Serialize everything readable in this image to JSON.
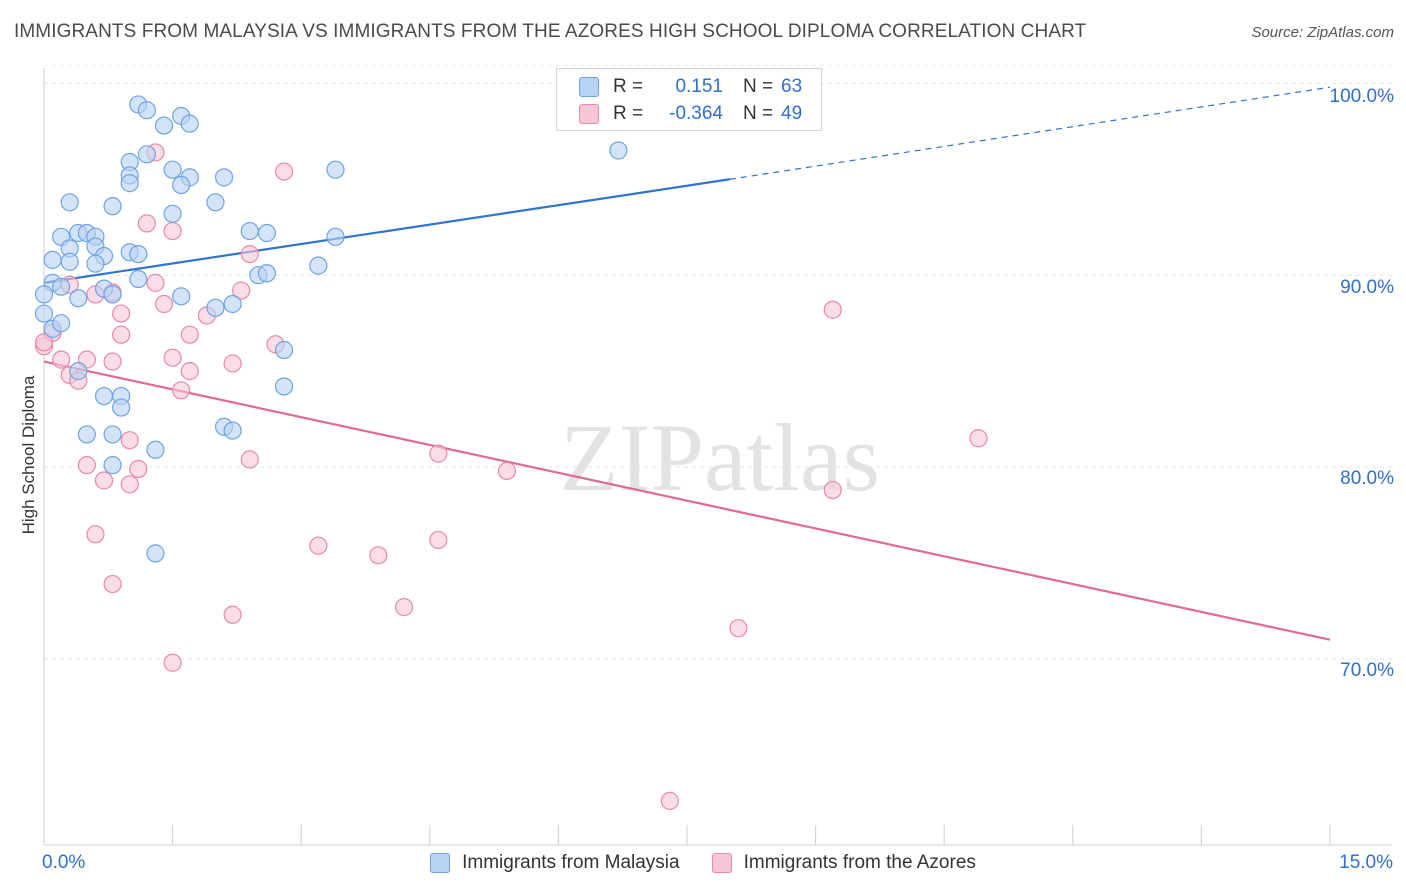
{
  "title": "IMMIGRANTS FROM MALAYSIA VS IMMIGRANTS FROM THE AZORES HIGH SCHOOL DIPLOMA CORRELATION CHART",
  "source": "Source: ZipAtlas.com",
  "watermark": "ZIPatlas",
  "legend": {
    "rows": [
      {
        "r_label": "R =",
        "r_value": "0.151",
        "n_label": "N =",
        "n_value": "63"
      },
      {
        "r_label": "R =",
        "r_value": "-0.364",
        "n_label": "N =",
        "n_value": "49"
      }
    ]
  },
  "chart_data": {
    "type": "scatter",
    "title": "IMMIGRANTS FROM MALAYSIA VS IMMIGRANTS FROM THE AZORES HIGH SCHOOL DIPLOMA CORRELATION CHART",
    "xlabel": "",
    "ylabel": "High School Diploma",
    "xlim": [
      0,
      15
    ],
    "ylim": [
      60.3,
      100.8
    ],
    "x_tick_labels": [
      "0.0%",
      "15.0%"
    ],
    "y_ticks": [
      70,
      80,
      90,
      100
    ],
    "y_tick_labels": [
      "70.0%",
      "80.0%",
      "90.0%",
      "100.0%"
    ],
    "grid": true,
    "legend_position": "bottom-center",
    "series": [
      {
        "name": "Immigrants from Malaysia",
        "color": "#6fa3e3",
        "fill": "#b8d2f4",
        "R": 0.151,
        "N": 63,
        "trend": {
          "x0": 0.0,
          "y0": 89.6,
          "x1": 8.0,
          "y1": 95.0,
          "dash_x1": 15.0,
          "dash_y1": 99.8
        },
        "points": [
          [
            1.1,
            98.9
          ],
          [
            1.2,
            98.6
          ],
          [
            1.6,
            98.3
          ],
          [
            1.4,
            97.8
          ],
          [
            1.7,
            97.9
          ],
          [
            1.2,
            96.3
          ],
          [
            6.7,
            96.5
          ],
          [
            1.0,
            95.9
          ],
          [
            1.5,
            95.5
          ],
          [
            3.4,
            95.5
          ],
          [
            1.0,
            95.2
          ],
          [
            1.7,
            95.1
          ],
          [
            2.1,
            95.1
          ],
          [
            1.0,
            94.8
          ],
          [
            1.6,
            94.7
          ],
          [
            0.3,
            93.8
          ],
          [
            0.8,
            93.6
          ],
          [
            2.0,
            93.8
          ],
          [
            1.5,
            93.2
          ],
          [
            0.4,
            92.2
          ],
          [
            0.5,
            92.2
          ],
          [
            0.2,
            92.0
          ],
          [
            0.6,
            92.0
          ],
          [
            2.4,
            92.3
          ],
          [
            2.6,
            92.2
          ],
          [
            3.4,
            92.0
          ],
          [
            0.3,
            91.4
          ],
          [
            0.6,
            91.5
          ],
          [
            1.0,
            91.2
          ],
          [
            1.1,
            91.1
          ],
          [
            0.7,
            91.0
          ],
          [
            0.1,
            90.8
          ],
          [
            0.3,
            90.7
          ],
          [
            0.6,
            90.6
          ],
          [
            3.2,
            90.5
          ],
          [
            2.5,
            90.0
          ],
          [
            2.6,
            90.1
          ],
          [
            1.1,
            89.8
          ],
          [
            0.1,
            89.6
          ],
          [
            0.2,
            89.4
          ],
          [
            0.7,
            89.3
          ],
          [
            0.8,
            89.0
          ],
          [
            1.6,
            88.9
          ],
          [
            0.0,
            89.0
          ],
          [
            0.4,
            88.8
          ],
          [
            2.2,
            88.5
          ],
          [
            2.0,
            88.3
          ],
          [
            0.0,
            88.0
          ],
          [
            0.1,
            87.2
          ],
          [
            2.8,
            86.1
          ],
          [
            0.4,
            85.0
          ],
          [
            2.8,
            84.2
          ],
          [
            0.7,
            83.7
          ],
          [
            0.9,
            83.7
          ],
          [
            0.9,
            83.1
          ],
          [
            2.1,
            82.1
          ],
          [
            2.2,
            81.9
          ],
          [
            0.5,
            81.7
          ],
          [
            0.8,
            81.7
          ],
          [
            1.3,
            80.9
          ],
          [
            0.8,
            80.1
          ],
          [
            1.3,
            75.5
          ],
          [
            0.2,
            87.5
          ]
        ]
      },
      {
        "name": "Immigrants from the Azores",
        "color": "#e889a7",
        "fill": "#f7c6d6",
        "R": -0.364,
        "N": 49,
        "trend": {
          "x0": 0.0,
          "y0": 85.5,
          "x1": 15.0,
          "y1": 71.0
        },
        "points": [
          [
            1.3,
            96.4
          ],
          [
            2.8,
            95.4
          ],
          [
            1.2,
            92.7
          ],
          [
            1.5,
            92.3
          ],
          [
            2.4,
            91.1
          ],
          [
            0.3,
            89.5
          ],
          [
            2.3,
            89.2
          ],
          [
            1.3,
            89.6
          ],
          [
            0.6,
            89.0
          ],
          [
            0.8,
            89.1
          ],
          [
            1.4,
            88.5
          ],
          [
            0.9,
            88.0
          ],
          [
            1.9,
            87.9
          ],
          [
            9.2,
            88.2
          ],
          [
            0.1,
            87.0
          ],
          [
            0.9,
            86.9
          ],
          [
            1.7,
            86.9
          ],
          [
            2.7,
            86.4
          ],
          [
            0.0,
            86.3
          ],
          [
            0.2,
            85.6
          ],
          [
            0.5,
            85.6
          ],
          [
            0.8,
            85.5
          ],
          [
            1.5,
            85.7
          ],
          [
            2.2,
            85.4
          ],
          [
            1.7,
            85.0
          ],
          [
            0.3,
            84.8
          ],
          [
            0.4,
            84.5
          ],
          [
            1.6,
            84.0
          ],
          [
            10.9,
            81.5
          ],
          [
            1.0,
            81.4
          ],
          [
            4.6,
            80.7
          ],
          [
            2.4,
            80.4
          ],
          [
            0.5,
            80.1
          ],
          [
            1.1,
            79.9
          ],
          [
            5.4,
            79.8
          ],
          [
            0.7,
            79.3
          ],
          [
            1.0,
            79.1
          ],
          [
            9.2,
            78.8
          ],
          [
            0.6,
            76.5
          ],
          [
            3.2,
            75.9
          ],
          [
            4.6,
            76.2
          ],
          [
            3.9,
            75.4
          ],
          [
            0.8,
            73.9
          ],
          [
            4.2,
            72.7
          ],
          [
            2.2,
            72.3
          ],
          [
            8.1,
            71.6
          ],
          [
            1.5,
            69.8
          ],
          [
            7.3,
            62.6
          ],
          [
            0.0,
            86.5
          ]
        ]
      }
    ]
  },
  "bottom_legend": [
    "Immigrants from Malaysia",
    "Immigrants from the Azores"
  ]
}
